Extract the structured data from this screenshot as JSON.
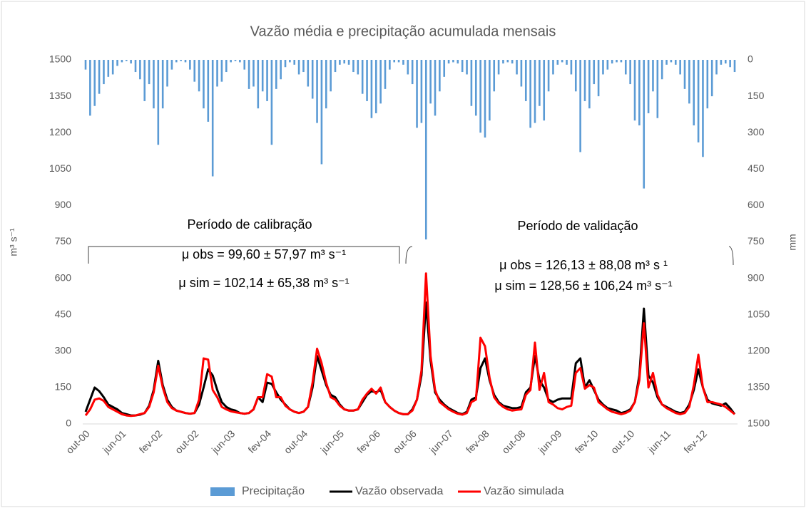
{
  "chart_data": {
    "type": "line",
    "title": "Vazão média e precipitação acumulada mensais",
    "ylabel": "m³ s⁻¹",
    "y2label": "mm",
    "annotations": [
      "Período de calibração",
      "Período de validação",
      "μ obs = 99,60 ± 57,97 m³ s⁻¹",
      "μ sim = 102,14 ± 65,38 m³ s⁻¹",
      "μ obs = 126,13 ± 88,08 m³ s ¹",
      "μ sim = 128,56 ± 106,24 m³ s⁻¹"
    ],
    "categories": [
      "out-00",
      null,
      null,
      null,
      null,
      null,
      null,
      null,
      "jun-01",
      null,
      null,
      null,
      null,
      null,
      null,
      null,
      "fev-02",
      null,
      null,
      null,
      null,
      null,
      null,
      null,
      "out-02",
      null,
      null,
      null,
      null,
      null,
      null,
      null,
      "jun-03",
      null,
      null,
      null,
      null,
      null,
      null,
      null,
      "fev-04",
      null,
      null,
      null,
      null,
      null,
      null,
      null,
      "out-04",
      null,
      null,
      null,
      null,
      null,
      null,
      null,
      "jun-05",
      null,
      null,
      null,
      null,
      null,
      null,
      null,
      "fev-06",
      null,
      null,
      null,
      null,
      null,
      null,
      null,
      "out-06",
      null,
      null,
      null,
      null,
      null,
      null,
      null,
      "jun-07",
      null,
      null,
      null,
      null,
      null,
      null,
      null,
      "fev-08",
      null,
      null,
      null,
      null,
      null,
      null,
      null,
      "out-08",
      null,
      null,
      null,
      null,
      null,
      null,
      null,
      "jun-09",
      null,
      null,
      null,
      null,
      null,
      null,
      null,
      "fev-10",
      null,
      null,
      null,
      null,
      null,
      null,
      null,
      "out-10",
      null,
      null,
      null,
      null,
      null,
      null,
      null,
      "jun-11",
      null,
      null,
      null,
      null,
      null,
      null,
      null,
      "fev-12",
      null,
      null,
      null,
      null,
      null,
      null,
      null
    ],
    "ylim": [
      0,
      1500
    ],
    "yticks": [
      0,
      150,
      300,
      450,
      600,
      750,
      900,
      1050,
      1200,
      1350,
      1500
    ],
    "y2lim": [
      1500,
      0
    ],
    "y2ticks": [
      0,
      150,
      300,
      450,
      600,
      750,
      900,
      1050,
      1200,
      1350,
      1500
    ],
    "legend": "bottom",
    "series": [
      {
        "name": "Precipitação",
        "type": "bar",
        "axis": "y2",
        "color": "#5b9bd5",
        "values": [
          40,
          230,
          190,
          140,
          100,
          70,
          60,
          25,
          10,
          5,
          15,
          50,
          80,
          170,
          100,
          200,
          350,
          200,
          110,
          40,
          10,
          5,
          10,
          40,
          90,
          130,
          200,
          255,
          480,
          110,
          90,
          50,
          10,
          5,
          10,
          40,
          120,
          110,
          200,
          130,
          170,
          350,
          120,
          80,
          30,
          10,
          20,
          60,
          50,
          110,
          160,
          260,
          430,
          200,
          130,
          50,
          20,
          15,
          20,
          50,
          60,
          140,
          170,
          240,
          220,
          180,
          120,
          40,
          10,
          10,
          20,
          60,
          100,
          280,
          260,
          740,
          180,
          230,
          130,
          70,
          15,
          10,
          15,
          50,
          60,
          190,
          230,
          300,
          320,
          250,
          130,
          60,
          15,
          10,
          15,
          60,
          110,
          170,
          280,
          260,
          190,
          250,
          130,
          60,
          20,
          10,
          20,
          60,
          130,
          380,
          170,
          200,
          100,
          150,
          60,
          40,
          15,
          10,
          10,
          60,
          100,
          250,
          270,
          530,
          220,
          130,
          240,
          80,
          20,
          10,
          20,
          60,
          120,
          180,
          270,
          340,
          400,
          200,
          150,
          60,
          20,
          15,
          30,
          50
        ]
      },
      {
        "name": "Vazão observada",
        "color": "#000000",
        "values": [
          50,
          100,
          150,
          135,
          110,
          80,
          70,
          60,
          45,
          40,
          35,
          35,
          38,
          45,
          75,
          140,
          260,
          160,
          100,
          70,
          55,
          50,
          45,
          42,
          45,
          80,
          150,
          225,
          200,
          140,
          90,
          70,
          60,
          55,
          45,
          42,
          45,
          60,
          110,
          90,
          170,
          165,
          130,
          100,
          80,
          60,
          50,
          45,
          50,
          70,
          150,
          280,
          220,
          160,
          120,
          110,
          80,
          60,
          55,
          55,
          60,
          90,
          120,
          135,
          130,
          140,
          90,
          70,
          55,
          45,
          40,
          40,
          60,
          100,
          200,
          500,
          260,
          130,
          100,
          80,
          65,
          55,
          45,
          40,
          50,
          100,
          110,
          230,
          270,
          180,
          120,
          90,
          75,
          70,
          65,
          65,
          70,
          130,
          150,
          280,
          180,
          150,
          100,
          90,
          100,
          105,
          105,
          105,
          250,
          270,
          150,
          180,
          140,
          100,
          80,
          65,
          60,
          55,
          45,
          50,
          60,
          90,
          200,
          475,
          200,
          170,
          110,
          80,
          70,
          60,
          50,
          45,
          50,
          80,
          140,
          225,
          150,
          100,
          85,
          80,
          75,
          85,
          65,
          40
        ]
      },
      {
        "name": "Vazão simulada",
        "color": "#ff0000",
        "values": [
          35,
          60,
          100,
          105,
          95,
          70,
          60,
          50,
          40,
          35,
          33,
          35,
          40,
          45,
          70,
          130,
          240,
          150,
          90,
          65,
          55,
          50,
          45,
          42,
          45,
          100,
          270,
          265,
          140,
          110,
          70,
          60,
          52,
          48,
          45,
          42,
          45,
          60,
          110,
          110,
          205,
          195,
          110,
          110,
          75,
          60,
          50,
          45,
          50,
          70,
          170,
          310,
          250,
          170,
          110,
          100,
          75,
          60,
          55,
          55,
          60,
          100,
          125,
          145,
          125,
          150,
          90,
          70,
          55,
          45,
          40,
          40,
          55,
          100,
          220,
          620,
          280,
          140,
          90,
          75,
          60,
          50,
          42,
          38,
          45,
          90,
          100,
          355,
          320,
          190,
          110,
          85,
          70,
          60,
          55,
          58,
          60,
          120,
          140,
          335,
          140,
          210,
          90,
          80,
          65,
          60,
          70,
          75,
          210,
          230,
          145,
          160,
          150,
          90,
          75,
          60,
          50,
          45,
          40,
          45,
          55,
          90,
          180,
          415,
          150,
          210,
          120,
          80,
          65,
          55,
          45,
          40,
          45,
          70,
          160,
          285,
          150,
          90,
          90,
          85,
          80,
          70,
          55,
          40
        ]
      }
    ]
  }
}
